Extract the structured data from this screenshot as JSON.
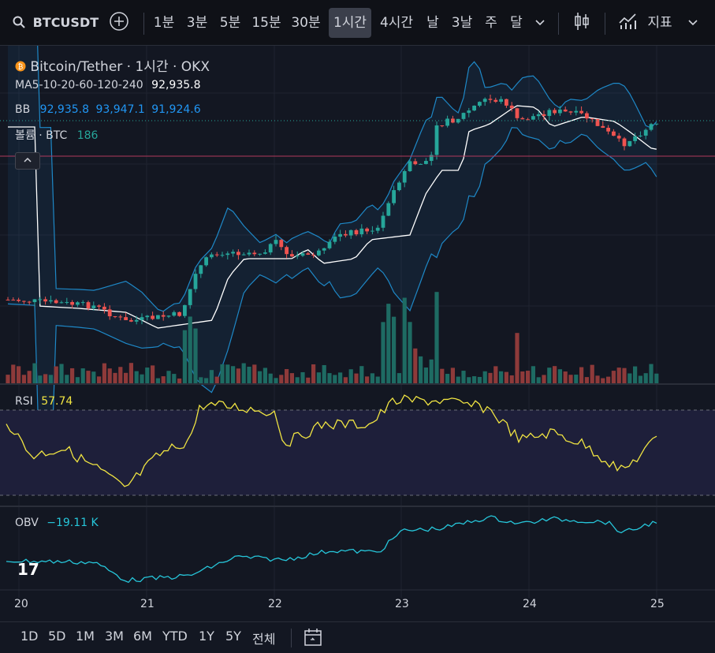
{
  "toolbar": {
    "symbol": "BTCUSDT",
    "timeframes": [
      "1분",
      "3분",
      "5분",
      "15분",
      "30분",
      "1시간",
      "4시간",
      "날",
      "3날",
      "주",
      "달"
    ],
    "active_timeframe": "1시간",
    "indicators_label": "지표"
  },
  "legend": {
    "title": "Bitcoin/Tether · 1시간 · OKX",
    "ma_label": "MA5-10-20-60-120-240",
    "ma_value": "92,935.8",
    "bb_label": "BB",
    "bb_values": [
      "92,935.8",
      "93,947.1",
      "91,924.6"
    ],
    "volume_label": "볼륨 · BTC",
    "volume_value": "186",
    "rsi_label": "RSI",
    "rsi_value": "57.74",
    "obv_label": "OBV",
    "obv_value": "−19.11 K"
  },
  "x_axis_dates": [
    "20",
    "21",
    "22",
    "23",
    "24",
    "25"
  ],
  "ranges": [
    "1D",
    "5D",
    "1M",
    "3M",
    "6M",
    "YTD",
    "1Y",
    "5Y",
    "전체"
  ],
  "colors": {
    "up": "#26a69a",
    "down": "#ef5350",
    "bb": "#2196f3",
    "rsi": "#f0e442",
    "obv": "#26c6da"
  },
  "chart_data": [
    {
      "type": "line",
      "title": "Bitcoin/Tether · 1시간 · OKX",
      "series": [
        {
          "name": "MA5-10-20-60-120-240",
          "values": [
            92935.8
          ]
        }
      ],
      "note_values": {
        "bb": [
          92935.8,
          93947.1,
          91924.6
        ]
      }
    },
    {
      "type": "line",
      "series": [
        {
          "name": "RSI",
          "values": [
            57.74
          ]
        }
      ]
    },
    {
      "type": "line",
      "series": [
        {
          "name": "OBV",
          "values": [
            -19110
          ]
        }
      ]
    }
  ]
}
